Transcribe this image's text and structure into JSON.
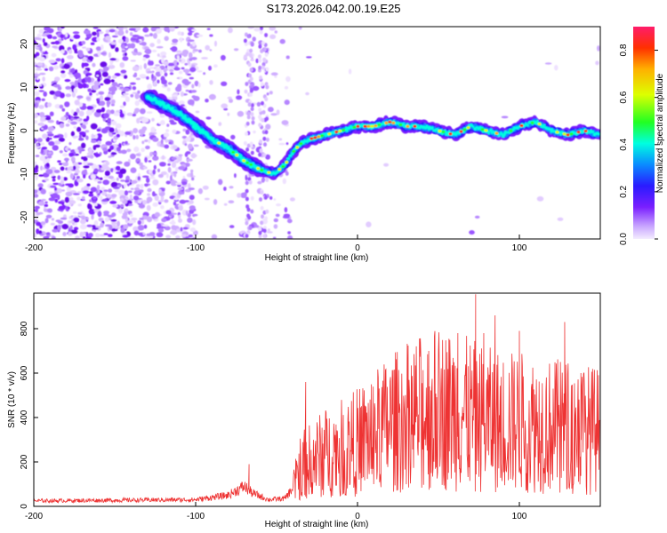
{
  "title": "S173.2026.042.00.19.E25",
  "chart_data": [
    {
      "type": "heatmap",
      "name": "spectrogram",
      "xlabel": "Height of straight line (km)",
      "ylabel": "Frequency (Hz)",
      "xlim": [
        -200,
        150
      ],
      "ylim": [
        -25,
        24
      ],
      "xticks": [
        "-200",
        "-100",
        "0",
        "100"
      ],
      "xtick_values": [
        -200,
        -100,
        0,
        100
      ],
      "yticks": [
        "20",
        "10",
        "0",
        "-10",
        "-20"
      ],
      "ytick_values": [
        20,
        10,
        0,
        -10,
        -20
      ],
      "ridge": {
        "x": [
          -130,
          -120,
          -110,
          -100,
          -90,
          -80,
          -70,
          -60,
          -52,
          -45,
          -40,
          -35,
          -30,
          -20,
          -10,
          0,
          10,
          20,
          30,
          40,
          50,
          60,
          70,
          80,
          90,
          100,
          110,
          120,
          130,
          140,
          150
        ],
        "y": [
          8,
          6,
          4,
          1,
          -2,
          -4,
          -7,
          -9,
          -10,
          -8,
          -5,
          -3,
          -2,
          -1,
          0,
          1,
          1,
          2,
          1,
          1,
          0,
          -1,
          1,
          0,
          -1,
          1,
          2,
          0,
          -1,
          0,
          -1
        ]
      },
      "colorbar": {
        "label": "Normalized spectral amplitude",
        "range": [
          0,
          0.9
        ],
        "ticks": [
          "0.0",
          "0.2",
          "0.4",
          "0.6",
          "0.8"
        ],
        "tick_values": [
          0,
          0.2,
          0.4,
          0.6,
          0.8
        ]
      }
    },
    {
      "type": "line",
      "name": "snr",
      "xlabel": "Height of straight line (km)",
      "ylabel": "SNR (10 * v/v)",
      "xlim": [
        -200,
        150
      ],
      "ylim": [
        0,
        960
      ],
      "xticks": [
        "-200",
        "-100",
        "0",
        "100"
      ],
      "xtick_values": [
        -200,
        -100,
        0,
        100
      ],
      "yticks": [
        "0",
        "200",
        "400",
        "600",
        "800"
      ],
      "ytick_values": [
        0,
        200,
        400,
        600,
        800
      ],
      "color": "#ee3333",
      "envelope": {
        "x": [
          -200,
          -100,
          -80,
          -70,
          -65,
          -55,
          -45,
          -40,
          -35,
          -20,
          -10,
          0,
          10,
          20,
          30,
          40,
          50,
          60,
          70,
          80,
          90,
          100,
          110,
          120,
          130,
          140,
          150
        ],
        "y": [
          25,
          30,
          50,
          90,
          60,
          30,
          35,
          80,
          180,
          240,
          260,
          290,
          330,
          370,
          400,
          420,
          440,
          430,
          410,
          390,
          380,
          380,
          370,
          360,
          360,
          350,
          340
        ]
      },
      "spikes": [
        {
          "x": -67,
          "y": 190
        },
        {
          "x": -32,
          "y": 560
        },
        {
          "x": 35,
          "y": 660
        },
        {
          "x": 44,
          "y": 700
        },
        {
          "x": 62,
          "y": 780
        },
        {
          "x": 73,
          "y": 955
        },
        {
          "x": 78,
          "y": 780
        },
        {
          "x": 85,
          "y": 860
        },
        {
          "x": 100,
          "y": 790
        },
        {
          "x": 128,
          "y": 830
        },
        {
          "x": 138,
          "y": 600
        }
      ]
    }
  ]
}
